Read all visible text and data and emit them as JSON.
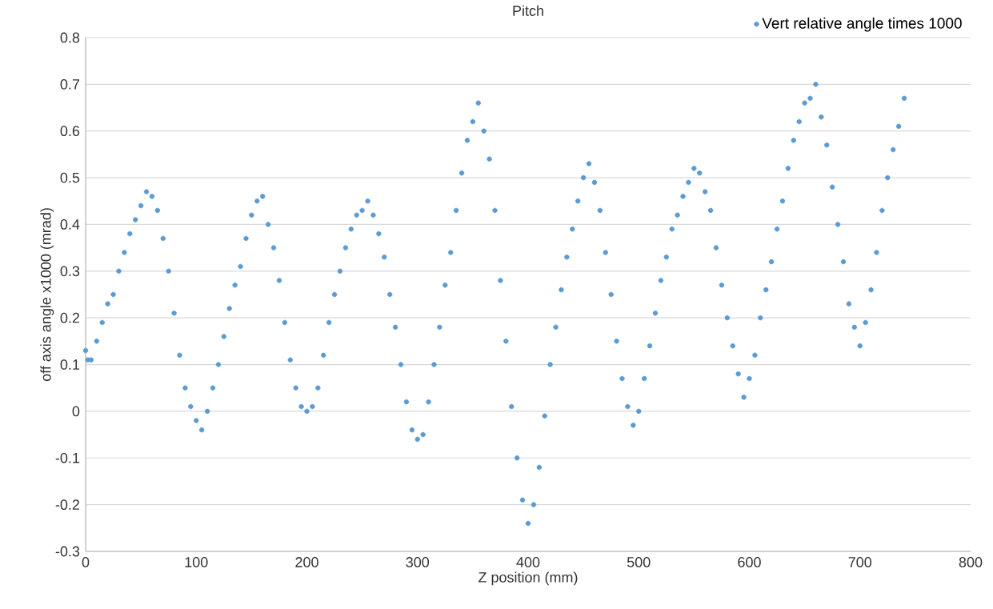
{
  "chart_data": {
    "type": "scatter",
    "title": "Pitch",
    "xlabel": "Z position (mm)",
    "ylabel": "off axis angle x1000 (mrad)",
    "series": [
      {
        "name": "Vert relative angle times 1000",
        "color": "#5b9bd5",
        "x": [
          0,
          2,
          5,
          10,
          15,
          20,
          25,
          30,
          35,
          40,
          45,
          50,
          55,
          60,
          65,
          70,
          75,
          80,
          85,
          90,
          95,
          100,
          105,
          110,
          115,
          120,
          125,
          130,
          135,
          140,
          145,
          150,
          155,
          160,
          165,
          170,
          175,
          180,
          185,
          190,
          195,
          200,
          205,
          210,
          215,
          220,
          225,
          230,
          235,
          240,
          245,
          250,
          255,
          260,
          265,
          270,
          275,
          280,
          285,
          290,
          295,
          300,
          305,
          310,
          315,
          320,
          325,
          330,
          335,
          340,
          345,
          350,
          355,
          360,
          365,
          370,
          375,
          380,
          385,
          390,
          395,
          400,
          405,
          410,
          415,
          420,
          425,
          430,
          435,
          440,
          445,
          450,
          455,
          460,
          465,
          470,
          475,
          480,
          485,
          490,
          495,
          500,
          505,
          510,
          515,
          520,
          525,
          530,
          535,
          540,
          545,
          550,
          555,
          560,
          565,
          570,
          575,
          580,
          585,
          590,
          595,
          600,
          605,
          610,
          615,
          620,
          625,
          630,
          635,
          640,
          645,
          650,
          655,
          660,
          665,
          670,
          675,
          680,
          685,
          690,
          695,
          700,
          705,
          710,
          715,
          720,
          725,
          730,
          735,
          740
        ],
        "values": [
          0.13,
          0.11,
          0.11,
          0.15,
          0.19,
          0.23,
          0.25,
          0.3,
          0.34,
          0.38,
          0.41,
          0.44,
          0.47,
          0.46,
          0.43,
          0.37,
          0.3,
          0.21,
          0.12,
          0.05,
          0.01,
          -0.02,
          -0.04,
          0.0,
          0.05,
          0.1,
          0.16,
          0.22,
          0.27,
          0.31,
          0.37,
          0.42,
          0.45,
          0.46,
          0.4,
          0.35,
          0.28,
          0.19,
          0.11,
          0.05,
          0.01,
          0.0,
          0.01,
          0.05,
          0.12,
          0.19,
          0.25,
          0.3,
          0.35,
          0.39,
          0.42,
          0.43,
          0.45,
          0.42,
          0.38,
          0.33,
          0.25,
          0.18,
          0.1,
          0.02,
          -0.04,
          -0.06,
          -0.05,
          0.02,
          0.1,
          0.18,
          0.27,
          0.34,
          0.43,
          0.51,
          0.58,
          0.62,
          0.66,
          0.6,
          0.54,
          0.43,
          0.28,
          0.15,
          0.01,
          -0.1,
          -0.19,
          -0.24,
          -0.2,
          -0.12,
          -0.01,
          0.1,
          0.18,
          0.26,
          0.33,
          0.39,
          0.45,
          0.5,
          0.53,
          0.49,
          0.43,
          0.34,
          0.25,
          0.15,
          0.07,
          0.01,
          -0.03,
          0.0,
          0.07,
          0.14,
          0.21,
          0.28,
          0.33,
          0.39,
          0.42,
          0.46,
          0.49,
          0.52,
          0.51,
          0.47,
          0.43,
          0.35,
          0.27,
          0.2,
          0.14,
          0.08,
          0.03,
          0.07,
          0.12,
          0.2,
          0.26,
          0.32,
          0.39,
          0.45,
          0.52,
          0.58,
          0.62,
          0.66,
          0.67,
          0.7,
          0.63,
          0.57,
          0.48,
          0.4,
          0.32,
          0.23,
          0.18,
          0.14,
          0.19,
          0.26,
          0.34,
          0.43,
          0.5,
          0.56,
          0.61,
          0.67
        ]
      }
    ],
    "xlim": [
      0,
      800
    ],
    "xticks": [
      0,
      100,
      200,
      300,
      400,
      500,
      600,
      700,
      800
    ],
    "ylim": [
      -0.3,
      0.8
    ],
    "yticks": [
      -0.3,
      -0.2,
      -0.1,
      0,
      0.1,
      0.2,
      0.3,
      0.4,
      0.5,
      0.6,
      0.7,
      0.8
    ],
    "grid": "y",
    "legend": "top right",
    "marker": "circle"
  }
}
